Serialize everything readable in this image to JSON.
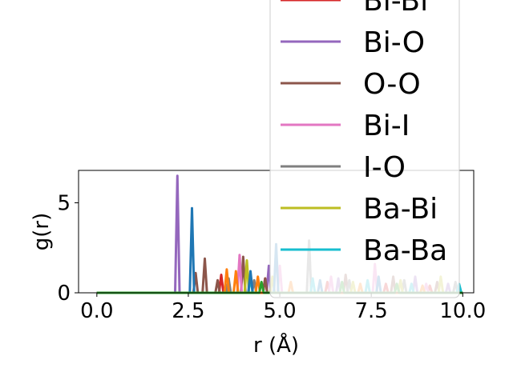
{
  "chart_data": {
    "type": "line",
    "title": "",
    "xlabel": "r (Å)",
    "ylabel": "g(r)",
    "xlim": [
      -0.5,
      10.3
    ],
    "ylim": [
      0,
      6.8
    ],
    "x_ticks": [
      "0.0",
      "2.5",
      "5.0",
      "7.5",
      "10.0"
    ],
    "x_tick_values": [
      0,
      2.5,
      5.0,
      7.5,
      10.0
    ],
    "y_ticks": [
      "0",
      "5"
    ],
    "y_tick_values": [
      0,
      5
    ],
    "legend_position": "upper-right, extending above the axes",
    "grid": false,
    "series": [
      {
        "name": "Bi-Bi",
        "color": "#d62728",
        "peaks": [
          [
            3.4,
            1.0
          ],
          [
            4.6,
            0.8
          ],
          [
            6.3,
            0.6
          ],
          [
            7.9,
            0.5
          ],
          [
            9.1,
            0.4
          ]
        ]
      },
      {
        "name": "Bi-O",
        "color": "#9467bd",
        "peaks": [
          [
            2.2,
            6.5
          ],
          [
            4.7,
            1.5
          ],
          [
            6.6,
            0.8
          ],
          [
            8.7,
            0.9
          ],
          [
            9.6,
            0.5
          ]
        ]
      },
      {
        "name": "O-O",
        "color": "#8c564b",
        "peaks": [
          [
            2.7,
            1.1
          ],
          [
            2.95,
            1.9
          ],
          [
            3.3,
            0.7
          ],
          [
            4.0,
            2.0
          ],
          [
            4.6,
            0.8
          ],
          [
            6.8,
            1.0
          ],
          [
            8.1,
            0.9
          ],
          [
            9.3,
            0.6
          ]
        ]
      },
      {
        "name": "Bi-I",
        "color": "#e377c2",
        "peaks": [
          [
            3.9,
            2.1
          ],
          [
            5.0,
            1.5
          ],
          [
            6.4,
            0.9
          ],
          [
            7.6,
            1.6
          ],
          [
            9.0,
            0.5
          ]
        ]
      },
      {
        "name": "I-O",
        "color": "#7f7f7f",
        "peaks": [
          [
            3.6,
            0.8
          ],
          [
            4.3,
            0.7
          ],
          [
            5.8,
            2.9
          ],
          [
            6.9,
            0.7
          ],
          [
            8.4,
            0.7
          ],
          [
            9.8,
            0.6
          ]
        ]
      },
      {
        "name": "Ba-Bi",
        "color": "#bcbd22",
        "peaks": [
          [
            4.1,
            1.8
          ],
          [
            4.8,
            0.9
          ],
          [
            7.0,
            0.6
          ],
          [
            8.3,
            0.7
          ],
          [
            9.4,
            0.9
          ]
        ]
      },
      {
        "name": "Ba-Ba",
        "color": "#17becf",
        "peaks": [
          [
            4.2,
            0.8
          ],
          [
            5.9,
            0.8
          ],
          [
            7.4,
            0.7
          ],
          [
            8.6,
            0.5
          ],
          [
            9.9,
            0.5
          ]
        ]
      },
      {
        "color": "#1f77b4",
        "peaks": [
          [
            2.6,
            4.7
          ],
          [
            4.2,
            1.2
          ],
          [
            4.9,
            2.7
          ],
          [
            6.1,
            0.7
          ],
          [
            7.7,
            0.9
          ]
        ]
      },
      {
        "color": "#ff7f0e",
        "peaks": [
          [
            3.55,
            1.3
          ],
          [
            3.8,
            1.2
          ],
          [
            4.4,
            0.9
          ],
          [
            5.3,
            0.6
          ],
          [
            7.2,
            0.5
          ],
          [
            8.9,
            0.4
          ]
        ]
      },
      {
        "color": "#2ca02c",
        "peaks": [
          [
            4.5,
            0.6
          ],
          [
            6.7,
            0.6
          ],
          [
            8.2,
            0.5
          ]
        ]
      }
    ]
  }
}
